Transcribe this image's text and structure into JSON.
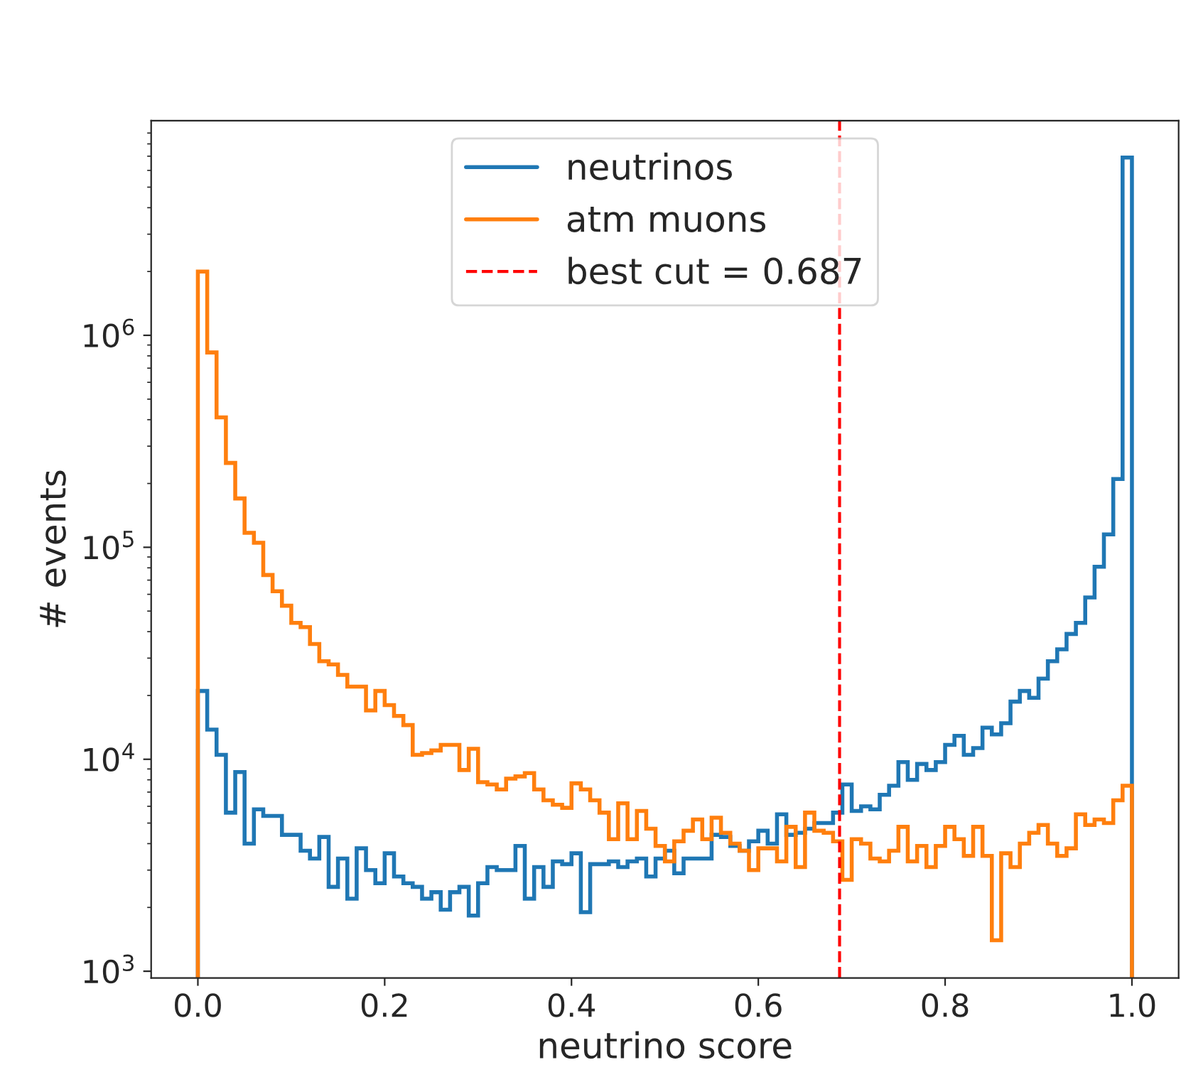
{
  "chart_data": {
    "type": "histogram",
    "xlabel": "neutrino score",
    "ylabel": "# events",
    "bins": [
      0.0,
      0.01,
      0.02,
      0.03,
      0.04,
      0.05,
      0.06,
      0.07,
      0.08,
      0.09,
      0.1,
      0.11,
      0.12,
      0.13,
      0.14,
      0.15,
      0.16,
      0.17,
      0.18,
      0.19,
      0.2,
      0.21,
      0.22,
      0.23,
      0.24,
      0.25,
      0.26,
      0.27,
      0.28,
      0.29,
      0.3,
      0.31,
      0.32,
      0.33,
      0.34,
      0.35,
      0.36,
      0.37,
      0.38,
      0.39,
      0.4,
      0.41,
      0.42,
      0.43,
      0.44,
      0.45,
      0.46,
      0.47,
      0.48,
      0.49,
      0.5,
      0.51,
      0.52,
      0.53,
      0.54,
      0.55,
      0.56,
      0.57,
      0.58,
      0.59,
      0.6,
      0.61,
      0.62,
      0.63,
      0.64,
      0.65,
      0.66,
      0.67,
      0.68,
      0.69,
      0.7,
      0.71,
      0.72,
      0.73,
      0.74,
      0.75,
      0.76,
      0.77,
      0.78,
      0.79,
      0.8,
      0.81,
      0.82,
      0.83,
      0.84,
      0.85,
      0.86,
      0.87,
      0.88,
      0.89,
      0.9,
      0.91,
      0.92,
      0.93,
      0.94,
      0.95,
      0.96,
      0.97,
      0.98,
      0.99,
      1.0
    ],
    "series": [
      {
        "name": "neutrinos",
        "color": "#1f77b4",
        "values": [
          21000,
          13800,
          10500,
          5600,
          8700,
          4000,
          5800,
          5400,
          5400,
          4400,
          4400,
          3700,
          3400,
          4300,
          2500,
          3400,
          2200,
          3800,
          3000,
          2600,
          3600,
          2800,
          2600,
          2500,
          2200,
          2360,
          1950,
          2360,
          2500,
          1830,
          2600,
          3100,
          3000,
          3000,
          3900,
          2200,
          3100,
          2500,
          3300,
          3200,
          3600,
          1900,
          3200,
          3200,
          3300,
          3100,
          3300,
          3400,
          2800,
          3400,
          3700,
          2900,
          3400,
          3400,
          3400,
          4400,
          4300,
          3900,
          3700,
          4100,
          4600,
          4000,
          5500,
          4400,
          4500,
          4700,
          5000,
          5000,
          5600,
          7600,
          5700,
          6000,
          5800,
          6800,
          7500,
          9700,
          8000,
          9500,
          8900,
          9700,
          11700,
          12900,
          10500,
          11300,
          14100,
          13100,
          14800,
          18700,
          21000,
          19500,
          24000,
          29000,
          33000,
          39000,
          44000,
          58000,
          81000,
          115000,
          210000,
          6900000
        ]
      },
      {
        "name": "atm muons",
        "color": "#ff7f0e",
        "values": [
          2000000,
          830000,
          410000,
          250000,
          170000,
          117000,
          105000,
          74000,
          62000,
          53000,
          44000,
          42000,
          35000,
          29000,
          28000,
          25000,
          22000,
          22000,
          17000,
          21000,
          18000,
          16000,
          14500,
          10500,
          10700,
          11000,
          11700,
          11700,
          8900,
          11200,
          7800,
          7600,
          7200,
          8100,
          8300,
          8600,
          7200,
          6400,
          6100,
          5900,
          7700,
          7200,
          6400,
          5600,
          4200,
          6200,
          4200,
          5700,
          4700,
          3900,
          3300,
          4100,
          4600,
          5200,
          4200,
          5300,
          4500,
          4000,
          3700,
          3000,
          3800,
          3800,
          3300,
          4800,
          3100,
          5600,
          4600,
          4500,
          4100,
          2700,
          4200,
          4000,
          3400,
          3300,
          3700,
          4800,
          3300,
          3900,
          3100,
          3900,
          4800,
          4200,
          3500,
          4800,
          3500,
          1400,
          3600,
          3100,
          4000,
          4500,
          4900,
          4000,
          3500,
          3800,
          5500,
          4900,
          5200,
          5000,
          6400,
          7500
        ]
      }
    ],
    "ref_lines": [
      {
        "axis": "x",
        "value": 0.687,
        "label": "best cut = 0.687",
        "color": "#ff0000",
        "line_style": "dashed"
      }
    ],
    "xlim": [
      -0.05,
      1.05
    ],
    "xticks": [
      {
        "value": 0,
        "label": "0.0"
      },
      {
        "value": 0.2,
        "label": "0.2"
      },
      {
        "value": 0.4,
        "label": "0.4"
      },
      {
        "value": 0.6,
        "label": "0.6"
      },
      {
        "value": 0.8,
        "label": "0.8"
      },
      {
        "value": 1,
        "label": "1.0"
      }
    ],
    "ylim": [
      930,
      10300000
    ],
    "yticks": [
      {
        "value": 1000,
        "label": "10$^{3}$"
      },
      {
        "value": 10000,
        "label": "10$^{4}$"
      },
      {
        "value": 100000,
        "label": "10$^{5}$"
      },
      {
        "value": 1000000,
        "label": "10$^{6}$"
      }
    ],
    "log": true,
    "legend": "top",
    "grid": false
  }
}
